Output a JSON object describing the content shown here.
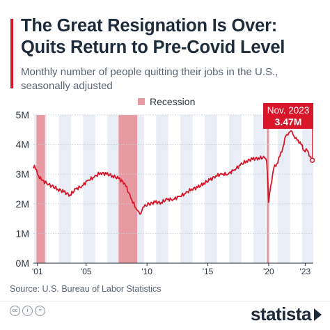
{
  "header": {
    "title_line1": "The Great Resignation Is Over:",
    "title_line2": "Quits Return to Pre-Covid Level",
    "subtitle_line1": "Monthly number of people quitting their jobs in the U.S.,",
    "subtitle_line2": "seasonally adjusted"
  },
  "legend": {
    "recession_label": "Recession"
  },
  "annotation": {
    "date_label": "Nov. 2023",
    "value_label": "3.47M"
  },
  "footer": {
    "source": "Source: U.S. Bureau of Labor Statistics",
    "brand": "statista"
  },
  "colors": {
    "line": "#d7162a",
    "recession": "#e89aa2",
    "band": "#e9eef6",
    "text": "#1e2b3a"
  },
  "chart_data": {
    "type": "line",
    "ylim": [
      0,
      5
    ],
    "y_ticks": [
      "0M",
      "1M",
      "2M",
      "3M",
      "4M",
      "5M"
    ],
    "x_tick_labels": [
      {
        "year": 2001,
        "label": "'01"
      },
      {
        "year": 2005,
        "label": "'05"
      },
      {
        "year": 2010,
        "label": "'10"
      },
      {
        "year": 2015,
        "label": "'15"
      },
      {
        "year": 2020,
        "label": "'20"
      },
      {
        "year": 2023,
        "label": "'23"
      }
    ],
    "recessions": [
      {
        "start": "2001-03",
        "end": "2001-11"
      },
      {
        "start": "2007-12",
        "end": "2009-06"
      },
      {
        "start": "2020-02",
        "end": "2020-04"
      }
    ],
    "series": [
      {
        "unit": "millions",
        "points": [
          [
            "2000-12",
            3.2
          ],
          [
            "2001-01",
            3.3
          ],
          [
            "2001-04",
            3.0
          ],
          [
            "2001-08",
            2.8
          ],
          [
            "2002-01",
            2.7
          ],
          [
            "2002-06",
            2.6
          ],
          [
            "2002-12",
            2.5
          ],
          [
            "2003-06",
            2.4
          ],
          [
            "2003-12",
            2.3
          ],
          [
            "2004-06",
            2.5
          ],
          [
            "2004-12",
            2.6
          ],
          [
            "2005-06",
            2.8
          ],
          [
            "2005-12",
            2.9
          ],
          [
            "2006-06",
            3.05
          ],
          [
            "2006-12",
            3.0
          ],
          [
            "2007-06",
            2.95
          ],
          [
            "2007-12",
            2.85
          ],
          [
            "2008-06",
            2.7
          ],
          [
            "2008-12",
            2.2
          ],
          [
            "2009-06",
            1.8
          ],
          [
            "2009-09",
            1.65
          ],
          [
            "2010-01",
            1.9
          ],
          [
            "2010-06",
            2.0
          ],
          [
            "2010-12",
            2.05
          ],
          [
            "2011-06",
            2.05
          ],
          [
            "2011-12",
            2.15
          ],
          [
            "2012-06",
            2.15
          ],
          [
            "2012-12",
            2.25
          ],
          [
            "2013-06",
            2.35
          ],
          [
            "2013-12",
            2.5
          ],
          [
            "2014-06",
            2.55
          ],
          [
            "2014-12",
            2.7
          ],
          [
            "2015-06",
            2.8
          ],
          [
            "2015-12",
            2.95
          ],
          [
            "2016-06",
            3.0
          ],
          [
            "2016-12",
            3.0
          ],
          [
            "2017-06",
            3.15
          ],
          [
            "2017-12",
            3.3
          ],
          [
            "2018-06",
            3.45
          ],
          [
            "2018-12",
            3.5
          ],
          [
            "2019-06",
            3.55
          ],
          [
            "2019-12",
            3.55
          ],
          [
            "2020-02",
            3.45
          ],
          [
            "2020-03",
            2.8
          ],
          [
            "2020-04",
            2.05
          ],
          [
            "2020-06",
            2.6
          ],
          [
            "2020-09",
            3.2
          ],
          [
            "2020-12",
            3.35
          ],
          [
            "2021-03",
            3.6
          ],
          [
            "2021-06",
            3.9
          ],
          [
            "2021-09",
            4.3
          ],
          [
            "2021-12",
            4.4
          ],
          [
            "2022-03",
            4.45
          ],
          [
            "2022-06",
            4.2
          ],
          [
            "2022-09",
            4.15
          ],
          [
            "2022-12",
            4.0
          ],
          [
            "2023-03",
            3.8
          ],
          [
            "2023-06",
            3.8
          ],
          [
            "2023-09",
            3.6
          ],
          [
            "2023-11",
            3.47
          ]
        ]
      }
    ]
  }
}
